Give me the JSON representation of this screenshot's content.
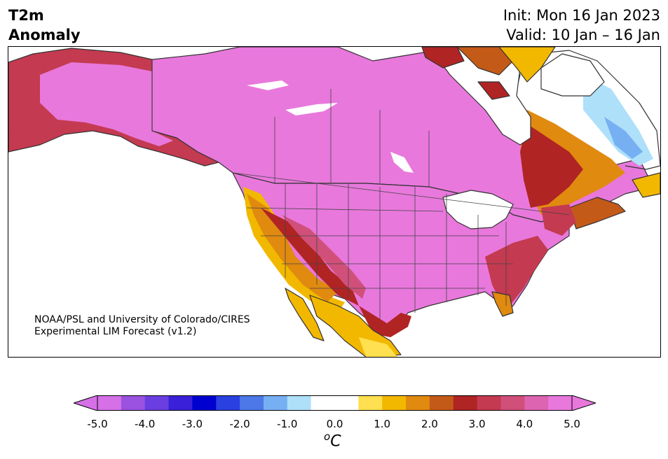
{
  "title": {
    "left_line1": "T2m",
    "left_line2": "Anomaly",
    "right_line1": "Init: Mon 16 Jan 2023",
    "right_line2": "Valid: 10 Jan – 16 Jan"
  },
  "map": {
    "region": "North America",
    "credit_line1": "NOAA/PSL and University of Colorado/CIRES",
    "credit_line2": "Experimental LIM Forecast (v1.2)"
  },
  "colorbar": {
    "unit_base": "C",
    "unit_sup": "o",
    "ticks": [
      "-5.0",
      "-4.0",
      "-3.0",
      "-2.0",
      "-1.0",
      "0.0",
      "1.0",
      "2.0",
      "3.0",
      "4.0",
      "5.0"
    ],
    "colors": [
      "#d670e6",
      "#9a52e0",
      "#6a3ee0",
      "#3a20d8",
      "#0000d0",
      "#2a40e0",
      "#4c78e8",
      "#76b0f2",
      "#aee0fa",
      "#ffffff",
      "#ffffff",
      "#ffe050",
      "#f2b800",
      "#e08a10",
      "#c45a18",
      "#b02424",
      "#c43a50",
      "#d0507a",
      "#dc64b0",
      "#e878dc"
    ],
    "under_color": "#d670e6",
    "over_color": "#e878dc"
  }
}
